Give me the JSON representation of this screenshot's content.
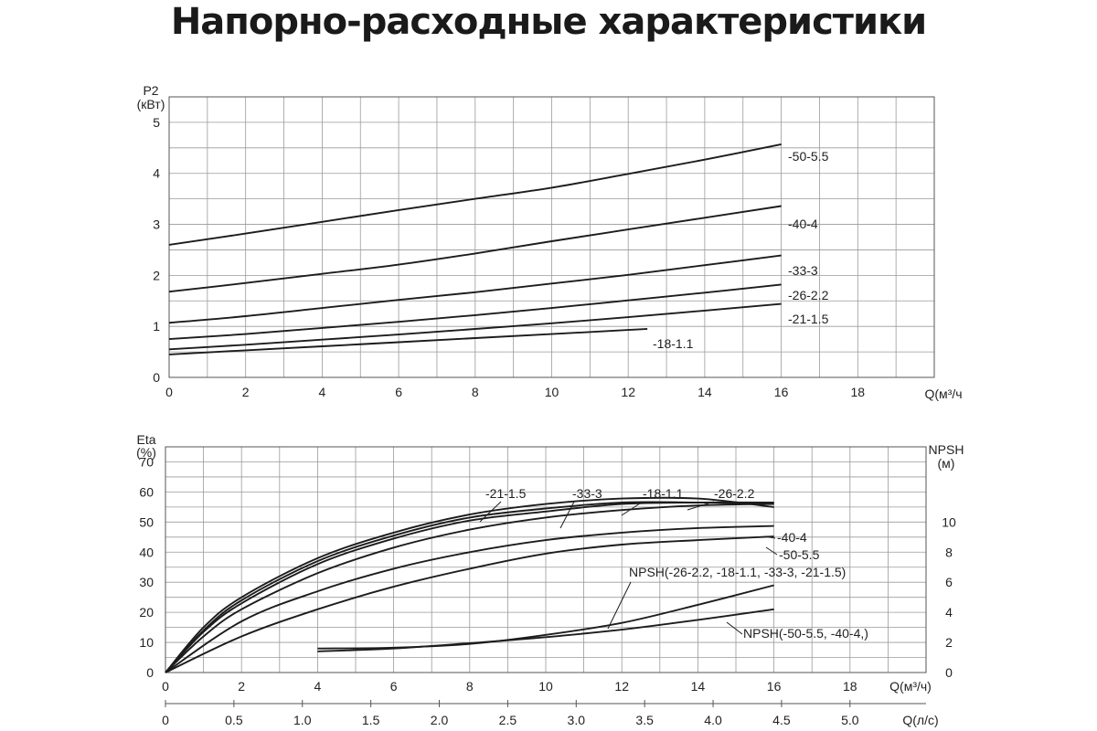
{
  "page": {
    "title": "Напорно-расходные характеристики"
  },
  "chart_data": [
    {
      "type": "line",
      "id": "power",
      "ylabel": "P2\n(кВт)",
      "xlabel": "Q(м³/ч",
      "xlim": [
        0,
        20
      ],
      "ylim": [
        0,
        5.5
      ],
      "grid": true,
      "x_ticks": [
        "0",
        "2",
        "4",
        "6",
        "8",
        "10",
        "12",
        "14",
        "16",
        "18"
      ],
      "y_ticks": [
        "0",
        "1",
        "2",
        "3",
        "4",
        "5"
      ],
      "series": [
        {
          "name": "-50-5.5",
          "x": [
            0,
            2,
            4,
            6,
            8,
            10,
            12,
            14,
            16
          ],
          "y": [
            2.6,
            2.82,
            3.05,
            3.28,
            3.5,
            3.72,
            3.99,
            4.27,
            4.57
          ]
        },
        {
          "name": "-40-4",
          "x": [
            0,
            2,
            4,
            6,
            8,
            10,
            12,
            14,
            16
          ],
          "y": [
            1.68,
            1.85,
            2.03,
            2.21,
            2.43,
            2.67,
            2.9,
            3.13,
            3.36
          ]
        },
        {
          "name": "-33-3",
          "x": [
            0,
            2,
            4,
            6,
            8,
            10,
            12,
            14,
            16
          ],
          "y": [
            1.07,
            1.2,
            1.36,
            1.52,
            1.67,
            1.84,
            2.01,
            2.2,
            2.39
          ]
        },
        {
          "name": "-26-2.2",
          "x": [
            0,
            2,
            4,
            6,
            8,
            10,
            12,
            14,
            16
          ],
          "y": [
            0.75,
            0.85,
            0.97,
            1.09,
            1.22,
            1.36,
            1.51,
            1.66,
            1.82
          ]
        },
        {
          "name": "-21-1.5",
          "x": [
            0,
            2,
            4,
            6,
            8,
            10,
            12,
            14,
            16
          ],
          "y": [
            0.55,
            0.64,
            0.74,
            0.84,
            0.95,
            1.06,
            1.18,
            1.31,
            1.44
          ]
        },
        {
          "name": "-18-1.1",
          "x": [
            0,
            2,
            4,
            6,
            8,
            10,
            12,
            12.5
          ],
          "y": [
            0.45,
            0.53,
            0.61,
            0.69,
            0.77,
            0.85,
            0.93,
            0.95
          ]
        }
      ]
    },
    {
      "type": "line",
      "id": "efficiency",
      "ylabel": "Eta\n(%)",
      "y2label": "NPSH\n(м)",
      "xlabel": "Q(м³/ч)",
      "xlabel2": "Q(л/с)",
      "xlim": [
        0,
        20
      ],
      "ylim": [
        0,
        75
      ],
      "y2lim": [
        0,
        15
      ],
      "grid": true,
      "x_ticks": [
        "0",
        "2",
        "4",
        "6",
        "8",
        "10",
        "12",
        "14",
        "16",
        "18"
      ],
      "x2_ticks": [
        "0",
        "0.5",
        "1.0",
        "1.5",
        "2.0",
        "2.5",
        "3.0",
        "3.5",
        "4.0",
        "4.5",
        "5.0"
      ],
      "y_ticks": [
        "0",
        "10",
        "20",
        "30",
        "40",
        "50",
        "60",
        "70"
      ],
      "y2_ticks": [
        "0",
        "2",
        "4",
        "6",
        "8",
        "10"
      ],
      "series": [
        {
          "name": "-21-1.5",
          "x": [
            0,
            1,
            2,
            4,
            6,
            8,
            10,
            12,
            14,
            16
          ],
          "y": [
            0,
            15,
            25,
            38,
            46.5,
            52.5,
            56,
            57.8,
            57.8,
            55
          ]
        },
        {
          "name": "-33-3",
          "x": [
            0,
            1,
            2,
            4,
            6,
            8,
            10,
            12,
            14,
            16
          ],
          "y": [
            0,
            14,
            24,
            37,
            45.5,
            51.5,
            54.5,
            56.5,
            56.5,
            56
          ]
        },
        {
          "name": "-18-1.1",
          "x": [
            0,
            1,
            2,
            4,
            6,
            8,
            10,
            12,
            14,
            16
          ],
          "y": [
            0,
            13.5,
            23,
            36,
            44.5,
            50.5,
            53.5,
            56,
            56.5,
            56.5
          ]
        },
        {
          "name": "-26-2.2",
          "x": [
            0,
            1,
            2,
            4,
            6,
            8,
            10,
            12,
            14,
            16
          ],
          "y": [
            0,
            12,
            21,
            33,
            41.5,
            47.5,
            51.5,
            54,
            55.5,
            56
          ]
        },
        {
          "name": "-40-4",
          "x": [
            0,
            2,
            4,
            6,
            8,
            10,
            12,
            14,
            16
          ],
          "y": [
            0,
            17,
            27,
            34.5,
            40,
            44,
            46.5,
            48,
            48.7
          ]
        },
        {
          "name": "-50-5.5",
          "x": [
            0,
            2,
            4,
            6,
            8,
            10,
            12,
            14,
            16
          ],
          "y": [
            0,
            12,
            21,
            28.5,
            34.5,
            39.5,
            42.5,
            44,
            45.2
          ]
        },
        {
          "name": "NPSH(-26-2.2, -18-1.1, -33-3, -21-1.5)",
          "axis": "y2",
          "x": [
            4,
            6,
            8,
            10,
            12,
            14,
            16
          ],
          "y": [
            1.6,
            1.65,
            1.9,
            2.5,
            3.3,
            4.5,
            5.8
          ]
        },
        {
          "name": "NPSH(-50-5.5, -40-4,)",
          "axis": "y2",
          "x": [
            4,
            6,
            8,
            10,
            12,
            14,
            16
          ],
          "y": [
            1.4,
            1.6,
            1.95,
            2.35,
            2.85,
            3.5,
            4.2
          ]
        }
      ]
    }
  ]
}
